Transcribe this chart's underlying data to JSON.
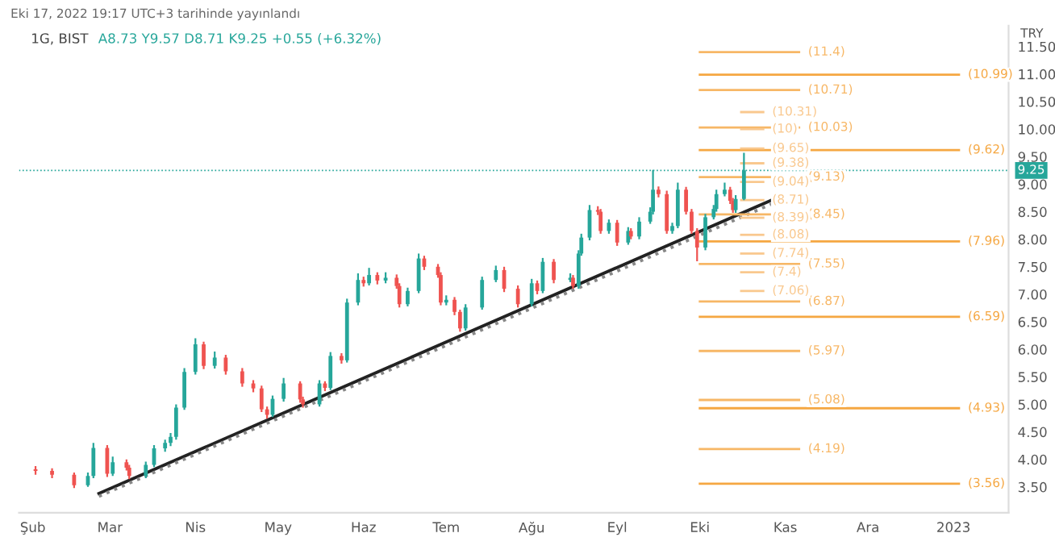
{
  "chart_data": {
    "type": "candlestick",
    "title": "1G, BIST",
    "subtitle": "A8.73 Y9.57 D8.71 K9.25 +0.55 (+6.32%)",
    "ylabel": "TRY",
    "annotations": [
      "Eki 17, 2022 19:17 UTC+3 tarihinde yayınlandı"
    ],
    "ref_lines": [
      {
        "axis": "y",
        "value": 9.25,
        "label": "9.25",
        "color": "#26a69a",
        "line_style": "dotted"
      }
    ],
    "x": [
      "2022-02-02",
      "2022-02-08",
      "2022-02-16",
      "2022-02-21",
      "2022-02-23",
      "2022-02-28",
      "2022-03-02",
      "2022-03-07",
      "2022-03-08",
      "2022-03-14",
      "2022-03-17",
      "2022-03-21",
      "2022-03-23",
      "2022-03-25",
      "2022-03-28",
      "2022-04-01",
      "2022-04-04",
      "2022-04-08",
      "2022-04-12",
      "2022-04-18",
      "2022-04-22",
      "2022-04-25",
      "2022-04-27",
      "2022-04-29",
      "2022-05-03",
      "2022-05-09",
      "2022-05-10",
      "2022-05-16",
      "2022-05-18",
      "2022-05-20",
      "2022-05-24",
      "2022-05-26",
      "2022-05-30",
      "2022-06-01",
      "2022-06-03",
      "2022-06-06",
      "2022-06-09",
      "2022-06-13",
      "2022-06-14",
      "2022-06-17",
      "2022-06-21",
      "2022-06-23",
      "2022-06-28",
      "2022-06-29",
      "2022-07-01",
      "2022-07-04",
      "2022-07-06",
      "2022-07-08",
      "2022-07-14",
      "2022-07-19",
      "2022-07-22",
      "2022-07-27",
      "2022-08-01",
      "2022-08-03",
      "2022-08-05",
      "2022-08-09",
      "2022-08-15",
      "2022-08-16",
      "2022-08-18",
      "2022-08-19",
      "2022-08-22",
      "2022-08-25",
      "2022-08-26",
      "2022-08-29",
      "2022-09-01",
      "2022-09-05",
      "2022-09-06",
      "2022-09-09",
      "2022-09-13",
      "2022-09-14",
      "2022-09-16",
      "2022-09-19",
      "2022-09-21",
      "2022-09-23",
      "2022-09-26",
      "2022-09-28",
      "2022-09-30",
      "2022-10-03",
      "2022-10-06",
      "2022-10-07",
      "2022-10-10",
      "2022-10-12",
      "2022-10-13",
      "2022-10-14",
      "2022-10-17"
    ],
    "ohlc": [
      [
        3.82,
        3.88,
        3.72,
        3.79
      ],
      [
        3.79,
        3.84,
        3.66,
        3.72
      ],
      [
        3.72,
        3.76,
        3.48,
        3.53
      ],
      [
        3.53,
        3.76,
        3.5,
        3.7
      ],
      [
        3.7,
        4.3,
        3.66,
        4.21
      ],
      [
        4.21,
        4.26,
        3.68,
        3.74
      ],
      [
        3.74,
        4.05,
        3.7,
        3.95
      ],
      [
        3.95,
        4.0,
        3.8,
        3.85
      ],
      [
        3.85,
        3.9,
        3.64,
        3.7
      ],
      [
        3.7,
        3.96,
        3.66,
        3.9
      ],
      [
        3.9,
        4.26,
        3.86,
        4.2
      ],
      [
        4.2,
        4.36,
        4.14,
        4.3
      ],
      [
        4.3,
        4.48,
        4.24,
        4.41
      ],
      [
        4.41,
        5.0,
        4.36,
        4.94
      ],
      [
        4.94,
        5.66,
        4.9,
        5.59
      ],
      [
        5.59,
        6.2,
        5.54,
        6.09
      ],
      [
        6.09,
        6.14,
        5.64,
        5.7
      ],
      [
        5.7,
        5.96,
        5.65,
        5.85
      ],
      [
        5.85,
        5.9,
        5.54,
        5.6
      ],
      [
        5.6,
        5.66,
        5.32,
        5.38
      ],
      [
        5.38,
        5.44,
        5.22,
        5.29
      ],
      [
        5.29,
        5.34,
        4.86,
        4.91
      ],
      [
        4.91,
        4.96,
        4.74,
        4.81
      ],
      [
        4.81,
        5.16,
        4.77,
        5.1
      ],
      [
        5.1,
        5.48,
        5.05,
        5.38
      ],
      [
        5.38,
        5.42,
        5.03,
        5.09
      ],
      [
        5.09,
        5.14,
        4.94,
        5.0
      ],
      [
        5.0,
        5.44,
        4.96,
        5.38
      ],
      [
        5.38,
        5.42,
        5.24,
        5.3
      ],
      [
        5.3,
        5.95,
        5.26,
        5.88
      ],
      [
        5.88,
        5.93,
        5.74,
        5.8
      ],
      [
        5.8,
        6.92,
        5.76,
        6.85
      ],
      [
        6.85,
        7.38,
        6.8,
        7.26
      ],
      [
        7.26,
        7.32,
        7.14,
        7.2
      ],
      [
        7.2,
        7.48,
        7.16,
        7.35
      ],
      [
        7.35,
        7.4,
        7.18,
        7.25
      ],
      [
        7.25,
        7.4,
        7.2,
        7.3
      ],
      [
        7.3,
        7.36,
        7.1,
        7.15
      ],
      [
        7.15,
        7.2,
        6.76,
        6.82
      ],
      [
        6.82,
        7.12,
        6.78,
        7.06
      ],
      [
        7.06,
        7.74,
        7.02,
        7.65
      ],
      [
        7.65,
        7.7,
        7.44,
        7.5
      ],
      [
        7.5,
        7.55,
        7.3,
        7.35
      ],
      [
        7.35,
        7.4,
        6.8,
        6.85
      ],
      [
        6.85,
        6.98,
        6.8,
        6.9
      ],
      [
        6.9,
        6.95,
        6.62,
        6.68
      ],
      [
        6.68,
        6.72,
        6.32,
        6.38
      ],
      [
        6.38,
        6.82,
        6.34,
        6.76
      ],
      [
        6.76,
        7.32,
        6.72,
        7.26
      ],
      [
        7.26,
        7.52,
        7.22,
        7.44
      ],
      [
        7.44,
        7.5,
        7.04,
        7.1
      ],
      [
        7.1,
        7.16,
        6.76,
        6.82
      ],
      [
        6.82,
        7.28,
        6.78,
        7.2
      ],
      [
        7.2,
        7.25,
        7.0,
        7.06
      ],
      [
        7.06,
        7.66,
        7.02,
        7.59
      ],
      [
        7.59,
        7.64,
        7.2,
        7.26
      ],
      [
        7.26,
        7.38,
        7.22,
        7.3
      ],
      [
        7.3,
        7.35,
        7.1,
        7.15
      ],
      [
        7.15,
        7.8,
        7.1,
        7.74
      ],
      [
        7.74,
        8.1,
        7.7,
        8.03
      ],
      [
        8.03,
        8.62,
        7.98,
        8.53
      ],
      [
        8.53,
        8.6,
        8.44,
        8.5
      ],
      [
        8.5,
        8.55,
        8.1,
        8.15
      ],
      [
        8.15,
        8.36,
        8.1,
        8.3
      ],
      [
        8.3,
        8.35,
        7.88,
        7.94
      ],
      [
        7.94,
        8.22,
        7.9,
        8.15
      ],
      [
        8.15,
        8.2,
        8.0,
        8.05
      ],
      [
        8.05,
        8.4,
        8.0,
        8.32
      ],
      [
        8.32,
        8.58,
        8.28,
        8.5
      ],
      [
        8.5,
        9.26,
        8.45,
        8.9
      ],
      [
        8.9,
        8.96,
        8.76,
        8.82
      ],
      [
        8.82,
        8.88,
        8.1,
        8.15
      ],
      [
        8.15,
        8.3,
        8.1,
        8.24
      ],
      [
        8.24,
        9.03,
        8.2,
        8.9
      ],
      [
        8.9,
        8.95,
        8.45,
        8.5
      ],
      [
        8.5,
        8.55,
        8.1,
        8.15
      ],
      [
        8.15,
        8.2,
        7.6,
        7.85
      ],
      [
        7.85,
        8.46,
        7.8,
        8.4
      ],
      [
        8.4,
        8.62,
        8.36,
        8.55
      ],
      [
        8.55,
        8.9,
        8.5,
        8.82
      ],
      [
        8.82,
        9.03,
        8.78,
        8.9
      ],
      [
        8.9,
        8.95,
        8.64,
        8.7
      ],
      [
        8.7,
        8.75,
        8.48,
        8.53
      ],
      [
        8.53,
        8.8,
        8.48,
        8.73
      ],
      [
        8.73,
        9.57,
        8.71,
        9.25
      ]
    ],
    "colors": [
      "#ef5350",
      "#ef5350",
      "#ef5350",
      "#26a69a",
      "#26a69a",
      "#ef5350",
      "#26a69a",
      "#ef5350",
      "#ef5350",
      "#26a69a",
      "#26a69a",
      "#26a69a",
      "#26a69a",
      "#26a69a",
      "#26a69a",
      "#26a69a",
      "#ef5350",
      "#26a69a",
      "#ef5350",
      "#ef5350",
      "#ef5350",
      "#ef5350",
      "#ef5350",
      "#26a69a",
      "#26a69a",
      "#ef5350",
      "#ef5350",
      "#26a69a",
      "#ef5350",
      "#26a69a",
      "#ef5350",
      "#26a69a",
      "#26a69a",
      "#ef5350",
      "#26a69a",
      "#ef5350",
      "#26a69a",
      "#ef5350",
      "#ef5350",
      "#26a69a",
      "#26a69a",
      "#ef5350",
      "#ef5350",
      "#ef5350",
      "#26a69a",
      "#ef5350",
      "#ef5350",
      "#26a69a",
      "#26a69a",
      "#26a69a",
      "#ef5350",
      "#ef5350",
      "#26a69a",
      "#ef5350",
      "#26a69a",
      "#ef5350",
      "#26a69a",
      "#ef5350",
      "#26a69a",
      "#26a69a",
      "#26a69a",
      "#ef5350",
      "#ef5350",
      "#26a69a",
      "#ef5350",
      "#26a69a",
      "#ef5350",
      "#26a69a",
      "#26a69a",
      "#26a69a",
      "#ef5350",
      "#ef5350",
      "#26a69a",
      "#26a69a",
      "#ef5350",
      "#ef5350",
      "#ef5350",
      "#26a69a",
      "#26a69a",
      "#26a69a",
      "#26a69a",
      "#ef5350",
      "#ef5350",
      "#26a69a",
      "#26a69a"
    ],
    "series": [
      {
        "type": "line",
        "color": "#222222",
        "line_style": "solid",
        "x": [
          "2022-02-25",
          "2022-10-27"
        ],
        "values": [
          3.38,
          8.71
        ]
      },
      {
        "type": "line",
        "color": "#888888",
        "line_style": "dotted",
        "x": [
          "2022-02-25",
          "2022-10-27"
        ],
        "values": [
          3.33,
          8.64
        ]
      },
      {
        "type": "line",
        "name": "(10.99)",
        "color": "#f5a742",
        "x": [
          "2022-10-01",
          "2023-01-03"
        ],
        "values": [
          10.99,
          10.99
        ]
      },
      {
        "type": "line",
        "name": "(9.62)",
        "color": "#f5a742",
        "x": [
          "2022-10-01",
          "2023-01-03"
        ],
        "values": [
          9.62,
          9.62
        ]
      },
      {
        "type": "line",
        "name": "(7.96)",
        "color": "#f5a742",
        "x": [
          "2022-10-01",
          "2023-01-03"
        ],
        "values": [
          7.96,
          7.96
        ]
      },
      {
        "type": "line",
        "name": "(6.59)",
        "color": "#f5a742",
        "x": [
          "2022-10-01",
          "2023-01-03"
        ],
        "values": [
          6.59,
          6.59
        ]
      },
      {
        "type": "line",
        "name": "(4.93)",
        "color": "#f5a742",
        "x": [
          "2022-10-01",
          "2023-01-03"
        ],
        "values": [
          4.93,
          4.93
        ]
      },
      {
        "type": "line",
        "name": "(3.56)",
        "color": "#f5a742",
        "x": [
          "2022-10-01",
          "2023-01-03"
        ],
        "values": [
          3.56,
          3.56
        ]
      },
      {
        "type": "line",
        "name": "(11.4)",
        "color": "#f7b766",
        "x": [
          "2022-10-01",
          "2022-11-06"
        ],
        "values": [
          11.4,
          11.4
        ]
      },
      {
        "type": "line",
        "name": "(10.71)",
        "color": "#f7b766",
        "x": [
          "2022-10-01",
          "2022-11-06"
        ],
        "values": [
          10.71,
          10.71
        ]
      },
      {
        "type": "line",
        "name": "(10.03)",
        "color": "#f7b766",
        "x": [
          "2022-10-01",
          "2022-11-06"
        ],
        "values": [
          10.03,
          10.03
        ]
      },
      {
        "type": "line",
        "name": "(9.13)",
        "color": "#f7b766",
        "x": [
          "2022-10-01",
          "2022-11-06"
        ],
        "values": [
          9.13,
          9.13
        ]
      },
      {
        "type": "line",
        "name": "(8.45)",
        "color": "#f7b766",
        "x": [
          "2022-10-01",
          "2022-11-06"
        ],
        "values": [
          8.45,
          8.45
        ]
      },
      {
        "type": "line",
        "name": "(7.55)",
        "color": "#f7b766",
        "x": [
          "2022-10-01",
          "2022-11-06"
        ],
        "values": [
          7.55,
          7.55
        ]
      },
      {
        "type": "line",
        "name": "(6.87)",
        "color": "#f7b766",
        "x": [
          "2022-10-01",
          "2022-11-06"
        ],
        "values": [
          6.87,
          6.87
        ]
      },
      {
        "type": "line",
        "name": "(5.97)",
        "color": "#f7b766",
        "x": [
          "2022-10-01",
          "2022-11-06"
        ],
        "values": [
          5.97,
          5.97
        ]
      },
      {
        "type": "line",
        "name": "(5.08)",
        "color": "#f7b766",
        "x": [
          "2022-10-01",
          "2022-11-06"
        ],
        "values": [
          5.08,
          5.08
        ]
      },
      {
        "type": "line",
        "name": "(4.19)",
        "color": "#f7b766",
        "x": [
          "2022-10-01",
          "2022-11-06"
        ],
        "values": [
          4.19,
          4.19
        ]
      },
      {
        "type": "line",
        "name": "(10.31)",
        "color": "#f9c88e",
        "x": [
          "2022-10-16",
          "2022-10-24"
        ],
        "values": [
          10.31,
          10.31
        ]
      },
      {
        "type": "line",
        "name": "(10)",
        "color": "#f9c88e",
        "x": [
          "2022-10-16",
          "2022-10-24"
        ],
        "values": [
          10,
          10
        ]
      },
      {
        "type": "line",
        "name": "(9.65)",
        "color": "#f9c88e",
        "x": [
          "2022-10-16",
          "2022-10-24"
        ],
        "values": [
          9.65,
          9.65
        ]
      },
      {
        "type": "line",
        "name": "(9.38)",
        "color": "#f9c88e",
        "x": [
          "2022-10-16",
          "2022-10-24"
        ],
        "values": [
          9.38,
          9.38
        ]
      },
      {
        "type": "line",
        "name": "(9.04)",
        "color": "#f9c88e",
        "x": [
          "2022-10-16",
          "2022-10-24"
        ],
        "values": [
          9.04,
          9.04
        ]
      },
      {
        "type": "line",
        "name": "(8.71)",
        "color": "#f9c88e",
        "x": [
          "2022-10-16",
          "2022-10-24"
        ],
        "values": [
          8.71,
          8.71
        ]
      },
      {
        "type": "line",
        "name": "(8.39)",
        "color": "#f9c88e",
        "x": [
          "2022-10-16",
          "2022-10-24"
        ],
        "values": [
          8.39,
          8.39
        ]
      },
      {
        "type": "line",
        "name": "(8.08)",
        "color": "#f9c88e",
        "x": [
          "2022-10-16",
          "2022-10-24"
        ],
        "values": [
          8.08,
          8.08
        ]
      },
      {
        "type": "line",
        "name": "(7.74)",
        "color": "#f9c88e",
        "x": [
          "2022-10-16",
          "2022-10-24"
        ],
        "values": [
          7.74,
          7.74
        ]
      },
      {
        "type": "line",
        "name": "(7.4)",
        "color": "#f9c88e",
        "x": [
          "2022-10-16",
          "2022-10-24"
        ],
        "values": [
          7.4,
          7.4
        ]
      },
      {
        "type": "line",
        "name": "(7.06)",
        "color": "#f9c88e",
        "x": [
          "2022-10-16",
          "2022-10-24"
        ],
        "values": [
          7.06,
          7.06
        ]
      }
    ],
    "xlim": [
      "2022-01-27",
      "2023-01-21"
    ],
    "xticks": [
      {
        "value": "2022-02-01",
        "label": "Şub"
      },
      {
        "value": "2022-03-01",
        "label": "Mar"
      },
      {
        "value": "2022-04-01",
        "label": "Nis"
      },
      {
        "value": "2022-05-01",
        "label": "May"
      },
      {
        "value": "2022-06-01",
        "label": "Haz"
      },
      {
        "value": "2022-07-01",
        "label": "Tem"
      },
      {
        "value": "2022-08-01",
        "label": "Ağu"
      },
      {
        "value": "2022-09-01",
        "label": "Eyl"
      },
      {
        "value": "2022-10-01",
        "label": "Eki"
      },
      {
        "value": "2022-11-01",
        "label": "Kas"
      },
      {
        "value": "2022-12-01",
        "label": "Ara"
      },
      {
        "value": "2023-01-01",
        "label": "2023"
      }
    ],
    "ylim": [
      3.03,
      11.88
    ],
    "yticks": [
      {
        "value": 3.5,
        "label": "3.50"
      },
      {
        "value": 4,
        "label": "4.00"
      },
      {
        "value": 4.5,
        "label": "4.50"
      },
      {
        "value": 5,
        "label": "5.00"
      },
      {
        "value": 5.5,
        "label": "5.50"
      },
      {
        "value": 6,
        "label": "6.00"
      },
      {
        "value": 6.5,
        "label": "6.50"
      },
      {
        "value": 7,
        "label": "7.00"
      },
      {
        "value": 7.5,
        "label": "7.50"
      },
      {
        "value": 8,
        "label": "8.00"
      },
      {
        "value": 8.5,
        "label": "8.50"
      },
      {
        "value": 9,
        "label": "9.00"
      },
      {
        "value": 9.5,
        "label": "9.50"
      },
      {
        "value": 10,
        "label": "10.00"
      },
      {
        "value": 10.5,
        "label": "10.50"
      },
      {
        "value": 11,
        "label": "11.00"
      },
      {
        "value": 11.5,
        "label": "11.50"
      }
    ],
    "grid": false
  }
}
